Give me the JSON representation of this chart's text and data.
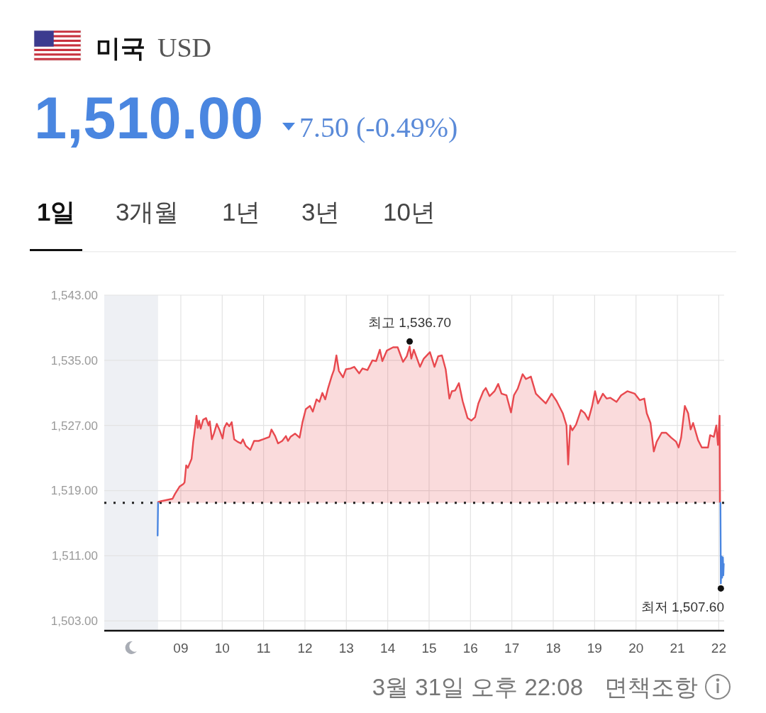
{
  "chart_data": {
    "type": "line",
    "title": "미국",
    "subtitle": "USD",
    "annotations": [
      "1,510.00",
      "7.50 (-0.49%)",
      "1일",
      "3개월",
      "1년",
      "3년",
      "10년",
      {
        "text": "최고 1,536.70",
        "x": 14.53,
        "y": 1536.7
      },
      {
        "text": "최저 1,507.60",
        "x": 22.05,
        "y": 1507.6
      },
      "3월 31일 오후 22:08",
      "면책조항"
    ],
    "xlim": [
      7.15,
      22.13
    ],
    "xticks": [
      {
        "value": 9,
        "label": "09"
      },
      10,
      11,
      12,
      13,
      14,
      15,
      16,
      17,
      18,
      19,
      20,
      21,
      22
    ],
    "ylim": [
      1501.8,
      1543
    ],
    "yticks": [
      {
        "value": 1503,
        "label": "1,503.00"
      },
      {
        "value": 1511,
        "label": "1,511.00"
      },
      {
        "value": 1519,
        "label": "1,519.00"
      },
      {
        "value": 1527,
        "label": "1,527.00"
      },
      {
        "value": 1535,
        "label": "1,535.00"
      },
      {
        "value": 1543,
        "label": "1,543.00"
      }
    ],
    "grid": true,
    "ref_lines": [
      {
        "axis": "y",
        "value": 1517.5,
        "color": "#222222",
        "line_style": "dotted"
      }
    ],
    "bands": [
      {
        "axis": "x",
        "from": 7.15,
        "to": 8.45,
        "color": "#eef0f4"
      }
    ],
    "series": [
      {
        "type": "area",
        "color": "#e8494f",
        "x": [
          8.45,
          8.52,
          8.8,
          8.86,
          8.97,
          9.06,
          9.09,
          9.13,
          9.17,
          9.26,
          9.3,
          9.33,
          9.38,
          9.41,
          9.44,
          9.48,
          9.54,
          9.61,
          9.67,
          9.7,
          9.75,
          9.8,
          9.87,
          9.94,
          10.01,
          10.05,
          10.11,
          10.17,
          10.23,
          10.29,
          10.37,
          10.45,
          10.5,
          10.57,
          10.68,
          10.77,
          10.88,
          10.99,
          11.14,
          11.19,
          11.28,
          11.35,
          11.45,
          11.54,
          11.59,
          11.65,
          11.76,
          11.87,
          11.94,
          12.02,
          12.12,
          12.19,
          12.28,
          12.35,
          12.42,
          12.49,
          12.56,
          12.65,
          12.7,
          12.76,
          12.82,
          12.92,
          12.99,
          13.1,
          13.19,
          13.31,
          13.39,
          13.51,
          13.63,
          13.72,
          13.81,
          13.87,
          13.98,
          14.13,
          14.24,
          14.37,
          14.46,
          14.53,
          14.57,
          14.63,
          14.78,
          14.87,
          15.02,
          15.13,
          15.22,
          15.31,
          15.4,
          15.49,
          15.55,
          15.63,
          15.72,
          15.81,
          15.93,
          16.02,
          16.11,
          16.19,
          16.31,
          16.37,
          16.46,
          16.58,
          16.67,
          16.75,
          16.87,
          16.98,
          17.05,
          17.14,
          17.26,
          17.34,
          17.46,
          17.58,
          17.7,
          17.82,
          17.96,
          18.08,
          18.23,
          18.32,
          18.36,
          18.41,
          18.46,
          18.55,
          18.67,
          18.76,
          18.85,
          18.94,
          19.01,
          19.08,
          19.2,
          19.29,
          19.38,
          19.53,
          19.64,
          19.79,
          19.97,
          20.09,
          20.2,
          20.26,
          20.35,
          20.43,
          20.5,
          20.62,
          20.73,
          20.85,
          20.97,
          21.03,
          21.09,
          21.18,
          21.26,
          21.32,
          21.38,
          21.5,
          21.59,
          21.74,
          21.79,
          21.88,
          21.94,
          21.98,
          22.02,
          22.03
        ],
        "values": [
          1517.6,
          1517.7,
          1518.0,
          1518.6,
          1519.5,
          1519.8,
          1520.0,
          1522.1,
          1521.8,
          1522.9,
          1525.0,
          1526.1,
          1528.2,
          1526.7,
          1527.6,
          1526.6,
          1527.7,
          1527.9,
          1527.0,
          1527.5,
          1525.3,
          1526.0,
          1527.2,
          1526.4,
          1525.4,
          1526.7,
          1527.3,
          1526.9,
          1527.4,
          1525.3,
          1525.0,
          1524.8,
          1525.3,
          1524.5,
          1524.0,
          1525.1,
          1525.1,
          1525.3,
          1525.6,
          1526.5,
          1525.7,
          1524.8,
          1525.1,
          1525.7,
          1525.1,
          1525.6,
          1526.0,
          1525.5,
          1527.4,
          1529.0,
          1529.4,
          1528.7,
          1530.2,
          1529.9,
          1531.0,
          1530.2,
          1531.6,
          1533.1,
          1533.8,
          1535.6,
          1533.7,
          1532.9,
          1533.9,
          1534.0,
          1534.2,
          1533.4,
          1534.0,
          1533.8,
          1535.0,
          1534.9,
          1536.3,
          1534.9,
          1536.2,
          1536.6,
          1536.6,
          1534.8,
          1535.5,
          1536.7,
          1535.2,
          1536.3,
          1534.2,
          1535.2,
          1536.0,
          1534.2,
          1535.5,
          1535.6,
          1533.9,
          1530.3,
          1531.2,
          1531.3,
          1532.2,
          1530.0,
          1527.9,
          1527.6,
          1528.0,
          1529.7,
          1531.2,
          1531.6,
          1530.6,
          1531.2,
          1532.1,
          1530.9,
          1530.7,
          1528.6,
          1530.7,
          1531.5,
          1533.3,
          1532.7,
          1533.0,
          1530.9,
          1530.3,
          1529.7,
          1530.9,
          1530.0,
          1528.5,
          1527.0,
          1522.2,
          1527.0,
          1526.4,
          1527.1,
          1528.9,
          1528.5,
          1527.7,
          1529.4,
          1531.2,
          1529.7,
          1530.9,
          1530.3,
          1530.4,
          1529.9,
          1530.7,
          1531.2,
          1530.9,
          1530.1,
          1530.3,
          1528.5,
          1527.3,
          1523.8,
          1525.0,
          1526.1,
          1526.1,
          1525.5,
          1525.0,
          1524.3,
          1525.5,
          1529.4,
          1528.5,
          1526.5,
          1527.3,
          1525.2,
          1524.3,
          1524.3,
          1525.8,
          1525.6,
          1527.0,
          1524.6,
          1528.2,
          1517.6
        ]
      },
      {
        "type": "line",
        "color": "#4a86e0",
        "x": [
          8.44,
          8.45,
          15,
          22.04,
          22.05,
          22.07,
          22.08,
          22.1,
          22.11,
          22.12
        ],
        "values": [
          1513.5,
          1517.5,
          null,
          1517.5,
          1507.6,
          1510.9,
          1508.3,
          1510.8,
          1508.6,
          1510.0
        ]
      }
    ]
  }
}
